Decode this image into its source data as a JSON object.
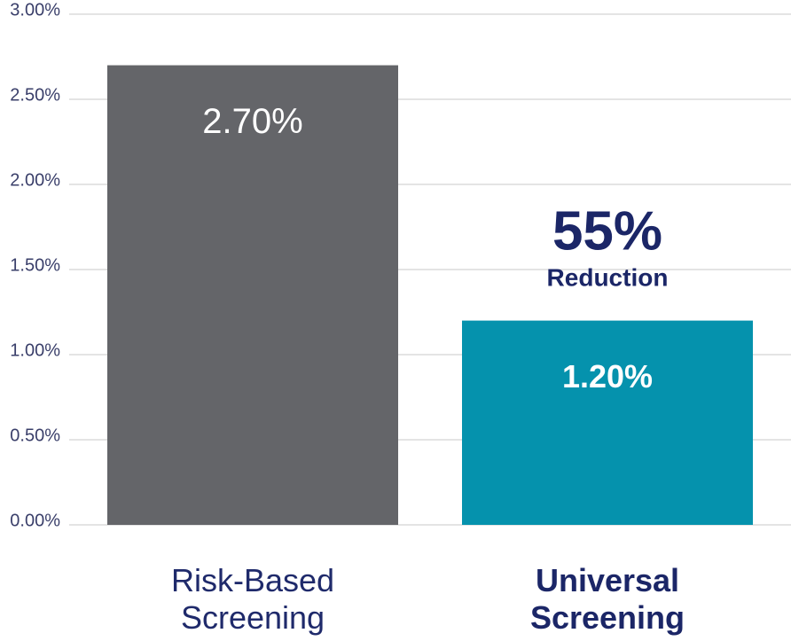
{
  "chart_data": {
    "type": "bar",
    "categories": [
      "Risk-Based Screening",
      "Universal Screening"
    ],
    "values": [
      2.7,
      1.2
    ],
    "value_labels": [
      "2.70%",
      "1.20%"
    ],
    "colors": [
      "#646569",
      "#0592ad"
    ],
    "ylim": [
      0,
      3
    ],
    "yticks": [
      {
        "value": 0,
        "label": "0.00%"
      },
      {
        "value": 0.5,
        "label": "0.50%"
      },
      {
        "value": 1,
        "label": "1.00%"
      },
      {
        "value": 1.5,
        "label": "1.50%"
      },
      {
        "value": 2,
        "label": "2.00%"
      },
      {
        "value": 2.5,
        "label": "2.50%"
      },
      {
        "value": 3,
        "label": "3.00%"
      }
    ],
    "grid": true,
    "annotations": [
      "55%",
      "Reduction"
    ]
  }
}
